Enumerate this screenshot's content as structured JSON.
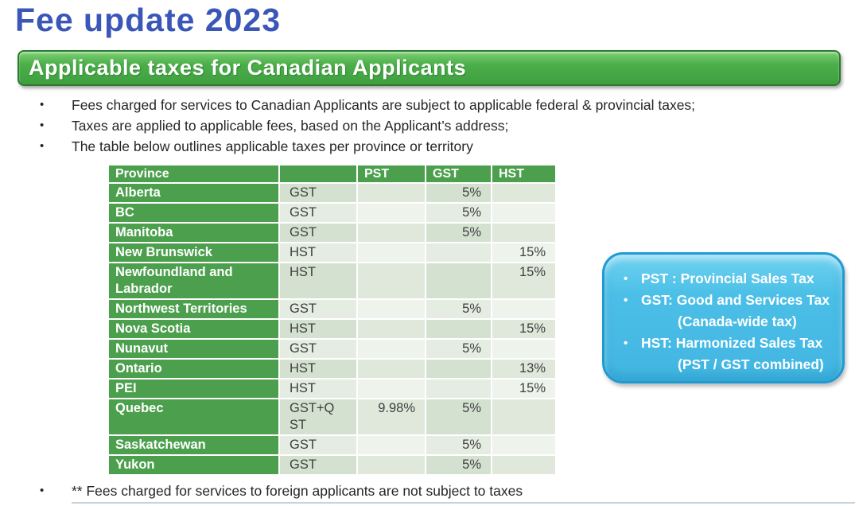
{
  "title": "Fee update 2023",
  "banner": "Applicable taxes for Canadian Applicants",
  "bullets": [
    "Fees charged for services to Canadian Applicants are subject to applicable federal & provincial taxes;",
    "Taxes are applied to applicable fees, based on the Applicant’s address;",
    "The table below outlines applicable taxes per province or territory"
  ],
  "table": {
    "columns": [
      "Province",
      "",
      "PST",
      "GST",
      "HST"
    ],
    "rows": [
      {
        "province": "Alberta",
        "type": "GST",
        "pst": "",
        "gst": "5%",
        "hst": ""
      },
      {
        "province": "BC",
        "type": "GST",
        "pst": "",
        "gst": "5%",
        "hst": ""
      },
      {
        "province": "Manitoba",
        "type": "GST",
        "pst": "",
        "gst": "5%",
        "hst": ""
      },
      {
        "province": "New Brunswick",
        "type": "HST",
        "pst": "",
        "gst": "",
        "hst": "15%"
      },
      {
        "province": "Newfoundland and Labrador",
        "type": "HST",
        "pst": "",
        "gst": "",
        "hst": "15%"
      },
      {
        "province": "Northwest Territories",
        "type": "GST",
        "pst": "",
        "gst": "5%",
        "hst": ""
      },
      {
        "province": "Nova Scotia",
        "type": "HST",
        "pst": "",
        "gst": "",
        "hst": "15%"
      },
      {
        "province": "Nunavut",
        "type": "GST",
        "pst": "",
        "gst": "5%",
        "hst": ""
      },
      {
        "province": "Ontario",
        "type": "HST",
        "pst": "",
        "gst": "",
        "hst": "13%"
      },
      {
        "province": "PEI",
        "type": "HST",
        "pst": "",
        "gst": "",
        "hst": "15%"
      },
      {
        "province": "Quebec",
        "type": "GST+QST",
        "pst": "9.98%",
        "gst": "5%",
        "hst": ""
      },
      {
        "province": "Saskatchewan",
        "type": "GST",
        "pst": "",
        "gst": "5%",
        "hst": ""
      },
      {
        "province": "Yukon",
        "type": "GST",
        "pst": "",
        "gst": "5%",
        "hst": ""
      }
    ]
  },
  "callout": {
    "items": [
      {
        "main": "PST : Provincial Sales Tax",
        "sub": ""
      },
      {
        "main": "GST: Good and Services Tax",
        "sub": "(Canada-wide tax)"
      },
      {
        "main": "HST: Harmonized Sales Tax",
        "sub": "(PST / GST combined)"
      }
    ]
  },
  "footnote": "** Fees charged for services to foreign applicants are not subject to taxes",
  "colors": {
    "title-blue": "#3a57b8",
    "banner-green": "#4aae49",
    "banner-green-light": "#7ed072",
    "banner-green-dark": "#3f9f40",
    "banner-border": "#2b7a2f",
    "table-green": "#4ca04d",
    "band-dd": "#d5e1d0",
    "band-dl": "#dfe8db",
    "band-ld": "#e5ece1",
    "band-ll": "#eef3ec",
    "callout-fill": "#4bbfe7",
    "callout-border": "#1f9bd4",
    "body-text": "#262626",
    "cell-text": "#3f3f3f"
  }
}
